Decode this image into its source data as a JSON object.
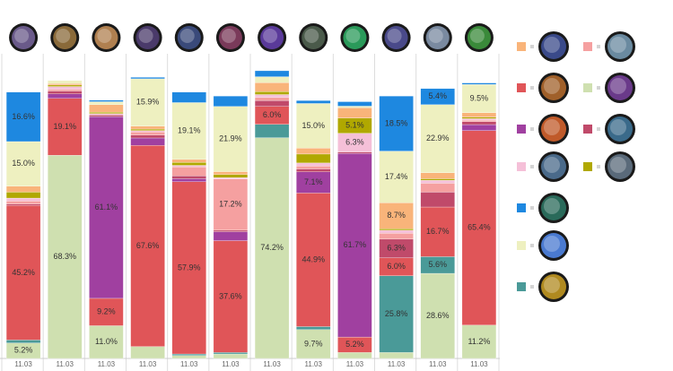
{
  "chart_data": {
    "type": "stacked_bar",
    "categories": [
      "11.03",
      "11.03",
      "11.03",
      "11.03",
      "11.03",
      "11.03",
      "11.03",
      "11.03",
      "11.03",
      "11.03",
      "11.03",
      "11.03"
    ],
    "ylim": [
      0,
      100
    ],
    "series": [
      {
        "color": "#f9b47a",
        "values": [
          2,
          0.5,
          2.5,
          1,
          1,
          1,
          3,
          2,
          3.5,
          8.7,
          2,
          1.5
        ],
        "value_labels": [
          null,
          null,
          null,
          null,
          null,
          null,
          null,
          null,
          null,
          "8.7%",
          null,
          null
        ]
      },
      {
        "color": "#f5a0a0",
        "values": [
          1,
          0.5,
          0,
          1,
          3,
          17.2,
          1,
          1,
          0,
          2,
          3,
          0.5
        ],
        "value_labels": [
          null,
          null,
          null,
          null,
          null,
          "17.2%",
          null,
          null,
          null,
          null,
          null,
          null
        ]
      },
      {
        "color": "#e05558",
        "values": [
          45.2,
          19.1,
          9.2,
          67.6,
          57.9,
          37.6,
          6.0,
          44.9,
          5.2,
          6.0,
          16.7,
          65.4
        ],
        "value_labels": [
          "45.2%",
          "19.1%",
          "9.2%",
          "67.6%",
          "57.9%",
          "37.6%",
          "6.0%",
          "44.9%",
          "5.2%",
          "6.0%",
          "16.7%",
          "65.4%"
        ]
      },
      {
        "color": "#cfe0b0",
        "values": [
          5.2,
          68.3,
          11.0,
          4,
          1,
          1.5,
          74.2,
          9.7,
          2,
          2,
          28.6,
          11.2
        ],
        "value_labels": [
          "5.2%",
          "68.3%",
          "11.0%",
          null,
          null,
          null,
          "74.2%",
          "9.7%",
          null,
          null,
          "28.6%",
          "11.2%"
        ]
      },
      {
        "color": "#a040a0",
        "values": [
          0,
          1.5,
          61.1,
          2.5,
          1,
          3,
          0,
          7.1,
          61.7,
          0,
          0,
          2
        ],
        "value_labels": [
          null,
          null,
          "61.1%",
          null,
          null,
          null,
          null,
          "7.1%",
          "61.7%",
          null,
          null,
          null
        ]
      },
      {
        "color": "#c04a6a",
        "values": [
          0.5,
          1,
          0.5,
          1,
          1,
          0.5,
          2,
          1,
          0.5,
          6.3,
          5,
          1
        ],
        "value_labels": [
          null,
          null,
          null,
          null,
          null,
          null,
          null,
          null,
          null,
          "6.3%",
          null,
          null
        ]
      },
      {
        "color": "#f5c0d8",
        "values": [
          1,
          1,
          0.5,
          0.5,
          0.5,
          0.5,
          1,
          1,
          6.3,
          1,
          1,
          0.5
        ],
        "value_labels": [
          null,
          null,
          null,
          null,
          null,
          null,
          null,
          null,
          "6.3%",
          null,
          null,
          null
        ]
      },
      {
        "color": "#b0a800",
        "values": [
          2,
          0.5,
          0.5,
          0.5,
          1,
          1,
          1,
          3,
          5.1,
          0.5,
          0.5,
          0.5
        ],
        "value_labels": [
          null,
          null,
          null,
          null,
          null,
          null,
          null,
          null,
          "5.1%",
          null,
          null,
          null
        ]
      },
      {
        "color": "#1e88e0",
        "values": [
          16.6,
          0,
          0.5,
          0.5,
          3.5,
          3.5,
          2,
          1,
          1.5,
          18.5,
          5.4,
          0.5
        ],
        "value_labels": [
          "16.6%",
          null,
          null,
          null,
          null,
          null,
          null,
          null,
          null,
          "18.5%",
          "5.4%",
          null
        ]
      },
      {
        "color": "#eef0c0",
        "values": [
          15.0,
          1,
          1,
          15.9,
          19.1,
          21.9,
          2,
          15.0,
          0.5,
          17.4,
          22.9,
          9.5
        ],
        "value_labels": [
          "15.0%",
          null,
          null,
          "15.9%",
          "19.1%",
          "21.9%",
          null,
          "15.0%",
          null,
          "17.4%",
          "22.9%",
          "9.5%"
        ]
      },
      {
        "color": "#4a9a98",
        "values": [
          1,
          0,
          0,
          0,
          0.5,
          0.5,
          4.5,
          1,
          0,
          25.8,
          5.6,
          0
        ],
        "value_labels": [
          null,
          null,
          null,
          null,
          null,
          null,
          null,
          null,
          null,
          "25.8%",
          "5.6%",
          null
        ]
      }
    ]
  }
}
